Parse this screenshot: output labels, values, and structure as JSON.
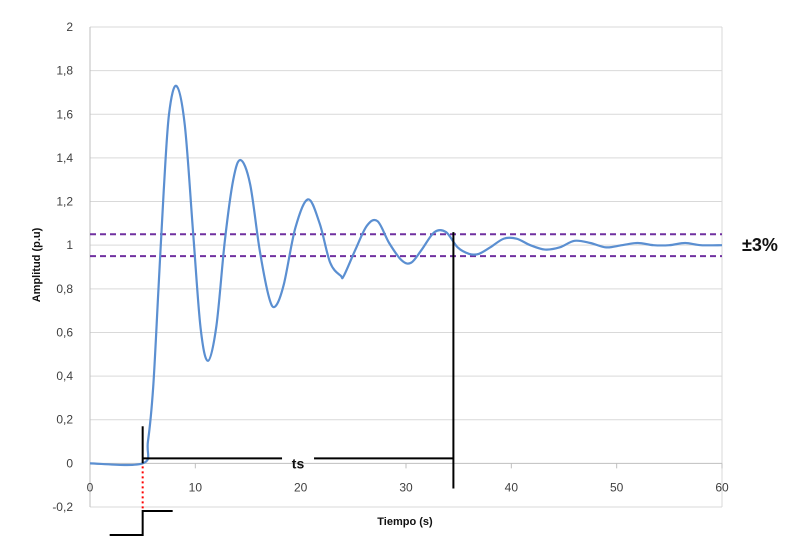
{
  "chart_data": {
    "type": "line",
    "title": "",
    "xlabel": "Tiempo (s)",
    "ylabel": "Amplitud (p.u)",
    "xlim": [
      0,
      60
    ],
    "ylim": [
      -0.2,
      2
    ],
    "x_ticks": [
      "0",
      "10",
      "20",
      "30",
      "40",
      "50",
      "60"
    ],
    "y_ticks": [
      "-0,2",
      "0",
      "0,2",
      "0,4",
      "0,6",
      "0,8",
      "1",
      "1,2",
      "1,4",
      "1,6",
      "1,8",
      "2"
    ],
    "grid": "horizontal",
    "colors": {
      "series": "#5b8fd1",
      "band": "#7030a0",
      "annotation": "#000000",
      "delay": "#ff0000",
      "grid": "#d9d9d9",
      "plot_border": "#d9d9d9"
    },
    "series": [
      {
        "x": [
          0,
          5,
          5.5,
          6,
          6.5,
          7,
          7.5,
          8.2,
          9,
          9.8,
          10.5,
          11.2,
          12,
          12.8,
          13.6,
          14.3,
          15.2,
          16.1,
          17,
          17.6,
          18.4,
          19.5,
          20.7,
          21.8,
          22.8,
          23.8,
          24.1,
          25.2,
          26.3,
          27.3,
          28.4,
          29.6,
          30.5,
          31.5,
          32.7,
          33.8,
          34.9,
          36,
          36.9,
          38,
          39.3,
          40.5,
          41.8,
          43.2,
          44.6,
          46,
          47.5,
          49,
          50.5,
          52,
          53.5,
          55,
          56.5,
          58,
          60
        ],
        "y": [
          0,
          0,
          0.1,
          0.35,
          0.8,
          1.25,
          1.6,
          1.73,
          1.55,
          1.05,
          0.62,
          0.47,
          0.63,
          1.02,
          1.3,
          1.39,
          1.28,
          0.98,
          0.76,
          0.72,
          0.82,
          1.08,
          1.21,
          1.1,
          0.92,
          0.86,
          0.86,
          0.98,
          1.09,
          1.11,
          1.01,
          0.93,
          0.92,
          0.98,
          1.06,
          1.06,
          0.99,
          0.96,
          0.96,
          0.99,
          1.03,
          1.03,
          1.0,
          0.98,
          0.99,
          1.02,
          1.01,
          0.99,
          1.0,
          1.01,
          1.0,
          1.0,
          1.01,
          1.0,
          1.0
        ]
      }
    ],
    "band": {
      "upper": 1.05,
      "lower": 0.95,
      "label": "±3%"
    },
    "settling_time": {
      "label": "ts",
      "start": 5,
      "end": 34.5
    },
    "step_input_time": 5
  }
}
